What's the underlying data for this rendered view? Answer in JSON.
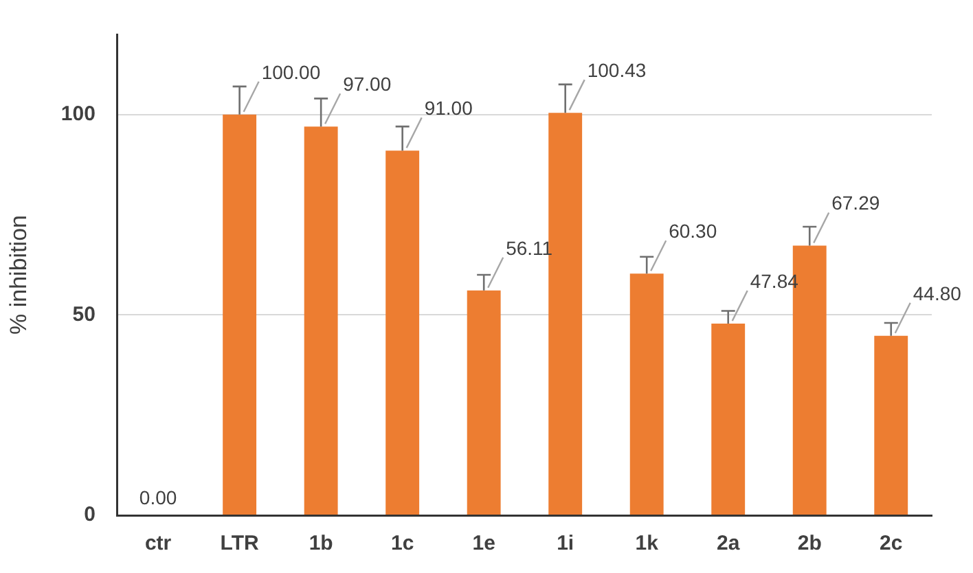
{
  "chart_data": {
    "type": "bar",
    "ylabel": "% inhibition",
    "categories": [
      "ctr",
      "LTR",
      "1b",
      "1c",
      "1e",
      "1i",
      "1k",
      "2a",
      "2b",
      "2c"
    ],
    "values": [
      0,
      100,
      97,
      91,
      56.11,
      100.43,
      60.3,
      47.84,
      67.29,
      44.8
    ],
    "value_labels": [
      "0.00",
      "100.00",
      "97.00",
      "91.00",
      "56.11",
      "100.43",
      "60.30",
      "47.84",
      "67.29",
      "44.80"
    ],
    "errors": [
      null,
      [
        100,
        107
      ],
      [
        97,
        104
      ],
      [
        91,
        97
      ],
      [
        56.11,
        60
      ],
      [
        100.43,
        107.5
      ],
      [
        60.3,
        64.5
      ],
      [
        47.84,
        51
      ],
      [
        67.29,
        72
      ],
      [
        44.8,
        48
      ]
    ],
    "color": "#ed7d31",
    "ylim": [
      0,
      120
    ],
    "yticks": [
      0,
      50,
      100
    ],
    "grid": "y",
    "legend": false
  }
}
